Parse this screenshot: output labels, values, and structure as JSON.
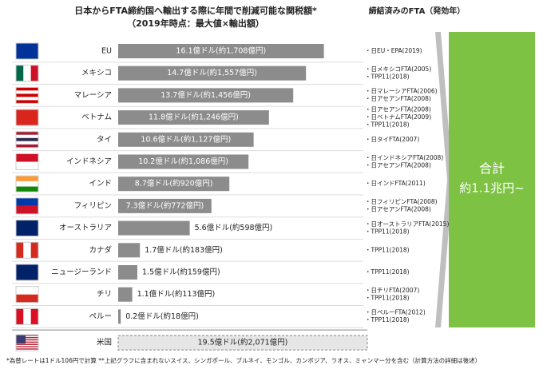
{
  "chart_data": {
    "type": "bar",
    "title": "日本からFTA締約国へ輸出する際に年間で削減可能な関税額*",
    "subtitle": "（2019年時点：最大値×輸出額）",
    "fta_header": "締結済みのFTA（発効年）",
    "color": "#8c8c8c",
    "categories": [
      "EU",
      "メキシコ",
      "マレーシア",
      "ベトナム",
      "タイ",
      "インドネシア",
      "インド",
      "フィリピン",
      "オーストラリア",
      "カナダ",
      "ニュージーランド",
      "チリ",
      "ペルー"
    ],
    "values": [
      16.1,
      14.7,
      13.7,
      11.8,
      10.6,
      10.2,
      8.7,
      7.3,
      5.6,
      1.7,
      1.5,
      1.1,
      0.2
    ],
    "value_labels": [
      "16.1億ドル(約1,708億円)",
      "14.7億ドル(約1,557億円)",
      "13.7億ドル(約1,456億円)",
      "11.8億ドル(約1,246億円)",
      "10.6億ドル(約1,127億円)",
      "10.2億ドル(約1,086億円)",
      "8.7億ドル(約920億円)",
      "7.3億ドル(約772億円)",
      "5.6億ドル(約598億円)",
      "1.7億ドル(約183億円)",
      "1.5億ドル(約159億円)",
      "1.1億ドル(約113億円)",
      "0.2億ドル(約18億円)"
    ],
    "notes": [
      [
        "・日EU・EPA(2019)"
      ],
      [
        "・日メキシコFTA(2005)",
        "・TPP11(2018)"
      ],
      [
        "・日マレーシアFTA(2006)",
        "・日アセアンFTA(2008)"
      ],
      [
        "・日アセアンFTA(2008)",
        "・日ベトナムFTA(2009)",
        "・TPP11(2018)"
      ],
      [
        "・日タイFTA(2007)"
      ],
      [
        "・日インドネシアFTA(2008)",
        "・日アセアンFTA(2008)"
      ],
      [
        "・日インドFTA(2011)"
      ],
      [
        "・日フィリピンFTA(2008)",
        "・日アセアンFTA(2008)"
      ],
      [
        "・日オーストラリアFTA(2015)",
        "・TPP11(2018)"
      ],
      [
        "・TPP11(2018)"
      ],
      [
        "・TPP11(2018)"
      ],
      [
        "・日チリFTA(2007)",
        "・TPP11(2018)"
      ],
      [
        "・日ペルーFTA(2012)",
        "・TPP11(2018)"
      ]
    ],
    "reference": {
      "category": "米国",
      "value": 19.5,
      "value_label": "19.5億ドル(約2,071億円)"
    },
    "total": {
      "label": "合計",
      "value_text": "約1.1兆円~"
    },
    "footnote": "*為替レートは1ドル106円で計算 **上記グラフに含まれないスイス、シンガポール、ブルネイ、モンゴル、カンボジア、ラオス、ミャンマー分を含む（計算方法の詳細は後述）"
  }
}
